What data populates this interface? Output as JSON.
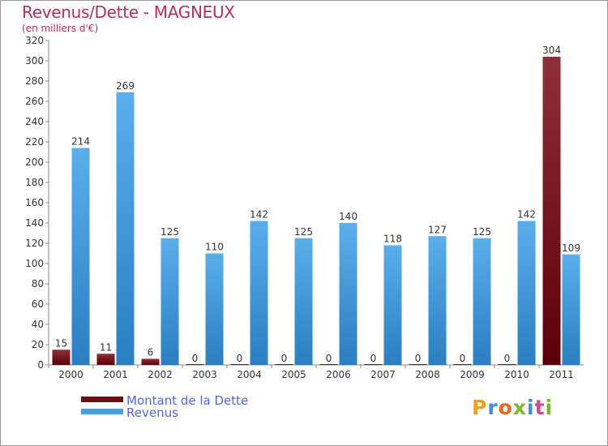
{
  "chart_data": {
    "type": "bar",
    "title": "Revenus/Dette - MAGNEUX",
    "subtitle": "(en milliers d'€)",
    "categories": [
      "2000",
      "2001",
      "2002",
      "2003",
      "2004",
      "2005",
      "2006",
      "2007",
      "2008",
      "2009",
      "2010",
      "2011"
    ],
    "series": [
      {
        "name": "Montant de la Dette",
        "color": "#7a1520",
        "values": [
          15,
          11,
          6,
          0,
          0,
          0,
          0,
          0,
          0,
          0,
          0,
          304
        ]
      },
      {
        "name": "Revenus",
        "color": "#4a9fe0",
        "values": [
          214,
          269,
          125,
          110,
          142,
          125,
          140,
          118,
          127,
          125,
          142,
          109
        ]
      }
    ],
    "ylim": [
      0,
      320
    ],
    "yticks": [
      0,
      20,
      40,
      60,
      80,
      100,
      120,
      140,
      160,
      180,
      200,
      220,
      240,
      260,
      280,
      300,
      320
    ],
    "grid": false,
    "legend_position": "bottom-left"
  },
  "logo": {
    "text": "Proxiti"
  }
}
